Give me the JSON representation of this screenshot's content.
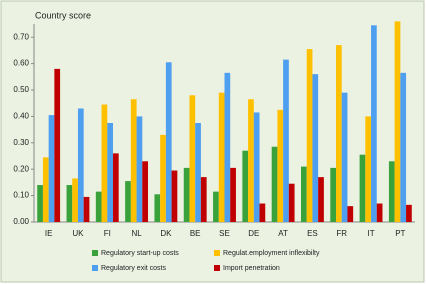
{
  "chart_data": {
    "type": "bar",
    "title": "Country score",
    "categories": [
      "IE",
      "UK",
      "FI",
      "NL",
      "DK",
      "BE",
      "SE",
      "DE",
      "AT",
      "ES",
      "FR",
      "IT",
      "PT"
    ],
    "series": [
      {
        "name": "Regulatory start-up costs",
        "color": "#3aa23a",
        "values": [
          0.14,
          0.14,
          0.115,
          0.155,
          0.105,
          0.205,
          0.115,
          0.27,
          0.285,
          0.21,
          0.205,
          0.255,
          0.23
        ]
      },
      {
        "name": "Regulat.employment inflexibilty",
        "color": "#ffc000",
        "values": [
          0.245,
          0.165,
          0.445,
          0.465,
          0.33,
          0.48,
          0.49,
          0.465,
          0.425,
          0.655,
          0.67,
          0.4,
          0.76
        ]
      },
      {
        "name": "Regulatory exit costs",
        "color": "#4f9ff0",
        "values": [
          0.405,
          0.43,
          0.375,
          0.4,
          0.605,
          0.375,
          0.565,
          0.415,
          0.615,
          0.56,
          0.49,
          0.745,
          0.565
        ]
      },
      {
        "name": "Import penetration",
        "color": "#c00000",
        "values": [
          0.58,
          0.095,
          0.26,
          0.23,
          0.195,
          0.17,
          0.205,
          0.07,
          0.145,
          0.17,
          0.06,
          0.07,
          0.065
        ]
      }
    ],
    "ylim": [
      0,
      0.75
    ],
    "yticks": [
      {
        "value": 0,
        "label": "0.00"
      },
      {
        "value": 0.1,
        "label": "0.10"
      },
      {
        "value": 0.2,
        "label": "0.20"
      },
      {
        "value": 0.3,
        "label": "0.30"
      },
      {
        "value": 0.4,
        "label": "0.40"
      },
      {
        "value": 0.5,
        "label": "0.50"
      },
      {
        "value": 0.6,
        "label": "0.60"
      },
      {
        "value": 0.7,
        "label": "0.70"
      }
    ],
    "grid": false,
    "legend": "bottom"
  }
}
